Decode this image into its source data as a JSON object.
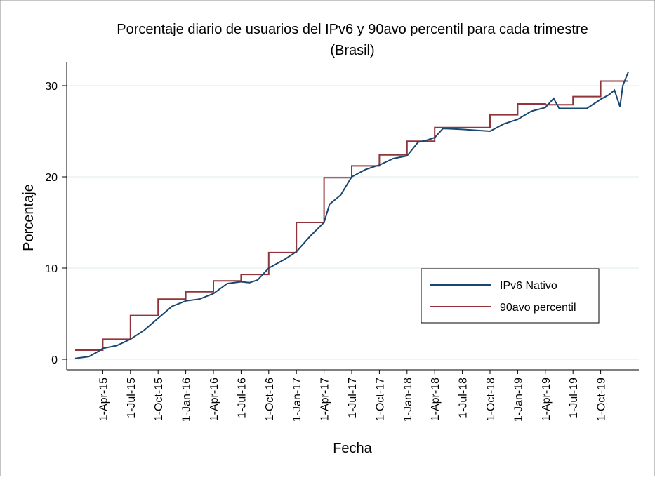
{
  "chart_data": {
    "type": "line",
    "title": "Porcentaje diario de usuarios del IPv6 y 90avo percentil para cada trimestre",
    "subtitle": "(Brasil)",
    "xlabel": "Fecha",
    "ylabel": "Porcentaje",
    "ylim": [
      0,
      30
    ],
    "yticks": [
      0,
      10,
      20,
      30
    ],
    "x_unit": "quarters since 1-Jan-15",
    "xlim": [
      0,
      20
    ],
    "xtick_labels": [
      "1-Apr-15",
      "1-Jul-15",
      "1-Oct-15",
      "1-Jan-16",
      "1-Apr-16",
      "1-Jul-16",
      "1-Oct-16",
      "1-Jan-17",
      "1-Apr-17",
      "1-Jul-17",
      "1-Oct-17",
      "1-Jan-18",
      "1-Apr-18",
      "1-Jul-18",
      "1-Oct-18",
      "1-Jan-19",
      "1-Apr-19",
      "1-Jul-19",
      "1-Oct-19"
    ],
    "grid": true,
    "legend_position": "right-middle",
    "series": [
      {
        "name": "IPv6 Nativo",
        "color": "#1a476f",
        "x": [
          0,
          0.5,
          0.8,
          1,
          1.5,
          2,
          2.5,
          3,
          3.5,
          4,
          4.5,
          5,
          5.5,
          6,
          6.3,
          6.6,
          7,
          7.3,
          7.6,
          8,
          8.5,
          9,
          9.2,
          9.6,
          10,
          10.5,
          11,
          11.5,
          12,
          12.4,
          12.7,
          13,
          13.3,
          14,
          15,
          15.5,
          16,
          16.5,
          17,
          17.3,
          17.5,
          18,
          18.5,
          19,
          19.3,
          19.5,
          19.7,
          19.8,
          20
        ],
        "y": [
          0.1,
          0.3,
          0.8,
          1.2,
          1.5,
          2.2,
          3.2,
          4.5,
          5.8,
          6.4,
          6.6,
          7.2,
          8.3,
          8.5,
          8.4,
          8.7,
          10.0,
          10.5,
          11.0,
          11.8,
          13.5,
          15.0,
          17.0,
          18.0,
          20.0,
          20.8,
          21.3,
          22.0,
          22.3,
          23.8,
          24.0,
          24.3,
          25.3,
          25.2,
          25.0,
          25.8,
          26.3,
          27.2,
          27.6,
          28.6,
          27.5,
          27.5,
          27.5,
          28.5,
          29.0,
          29.5,
          27.7,
          30.0,
          31.5
        ]
      },
      {
        "name": "90avo percentil",
        "color": "#90353b",
        "type": "step",
        "values": [
          1.0,
          2.2,
          4.8,
          6.6,
          7.4,
          8.6,
          9.3,
          11.7,
          15.0,
          19.9,
          21.2,
          22.4,
          23.9,
          25.4,
          25.4,
          26.8,
          28.0,
          27.9,
          28.8,
          30.5
        ]
      }
    ]
  }
}
